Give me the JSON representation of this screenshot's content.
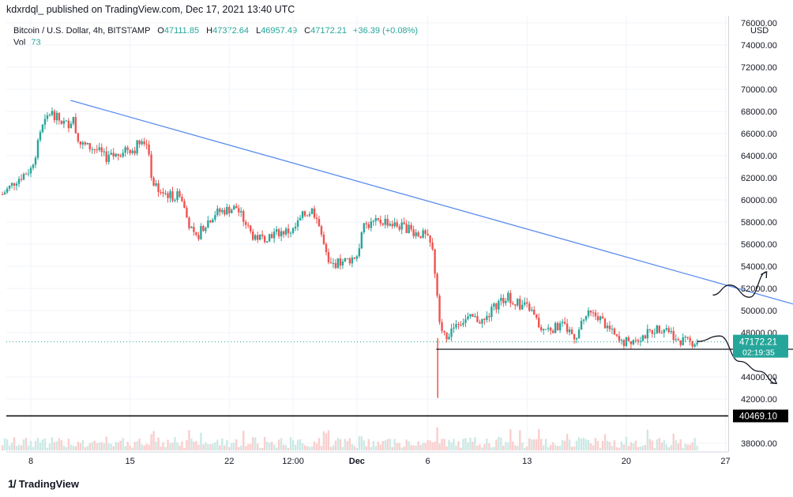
{
  "header": {
    "publish_line": "kdxrdql_ published on TradingView.com, Dec 17, 2021 13:40 UTC"
  },
  "legend": {
    "symbol": "Bitcoin / U.S. Dollar, 4h, BITSTAMP",
    "open_label": "O",
    "open": "47111.85",
    "high_label": "H",
    "high": "47372.64",
    "low_label": "L",
    "low": "46957.49",
    "close_label": "C",
    "close": "47172.21",
    "change": "+36.39 (+0.08%)",
    "vol_label": "Vol",
    "vol": "73"
  },
  "colors": {
    "up": "#26a69a",
    "down": "#ef5350",
    "trendline": "#5b8def",
    "hline": "#131722",
    "price_tag": "#26a69a",
    "support_tag": "#000000",
    "vol_up": "#cce9e5",
    "vol_down": "#f9cfce"
  },
  "footer": {
    "brand": "TradingView",
    "brand_icon": "tv-logo-icon"
  },
  "chart_data": {
    "type": "candlestick",
    "symbol": "BTCUSD",
    "interval": "4h",
    "currency_label": "USD",
    "y_ticks": [
      "76000.00",
      "74000.00",
      "72000.00",
      "70000.00",
      "68000.00",
      "66000.00",
      "64000.00",
      "62000.00",
      "60000.00",
      "58000.00",
      "56000.00",
      "54000.00",
      "52000.00",
      "50000.00",
      "48000.00",
      "44000.00",
      "42000.00",
      "38000.00"
    ],
    "y_tick_values": [
      76000,
      74000,
      72000,
      70000,
      68000,
      66000,
      64000,
      62000,
      60000,
      58000,
      56000,
      54000,
      52000,
      50000,
      48000,
      44000,
      42000,
      38000
    ],
    "ylim": [
      37000,
      77000
    ],
    "x_ticks": [
      "8",
      "15",
      "22",
      "12:00",
      "Dec",
      "6",
      "13",
      "20",
      "27"
    ],
    "x_tick_days": [
      8,
      15,
      22,
      26.5,
      31,
      36,
      43,
      50,
      57
    ],
    "xlim": [
      6,
      59
    ],
    "x_unit": "days from Nov 1, 2021 (Dec 1 = 31)",
    "ohlc_anchor_points": [
      {
        "d": 6.0,
        "price": 60500
      },
      {
        "d": 7.0,
        "price": 61800
      },
      {
        "d": 8.0,
        "price": 62800
      },
      {
        "d": 8.4,
        "price": 64500
      },
      {
        "d": 8.8,
        "price": 66500
      },
      {
        "d": 9.4,
        "price": 68000
      },
      {
        "d": 10.0,
        "price": 67200
      },
      {
        "d": 10.6,
        "price": 66800
      },
      {
        "d": 11.0,
        "price": 67500
      },
      {
        "d": 11.3,
        "price": 65200
      },
      {
        "d": 12.0,
        "price": 64800
      },
      {
        "d": 12.6,
        "price": 64600
      },
      {
        "d": 13.3,
        "price": 63800
      },
      {
        "d": 14.0,
        "price": 64000
      },
      {
        "d": 14.7,
        "price": 64700
      },
      {
        "d": 15.3,
        "price": 64500
      },
      {
        "d": 15.8,
        "price": 65800
      },
      {
        "d": 16.2,
        "price": 64800
      },
      {
        "d": 16.6,
        "price": 61500
      },
      {
        "d": 17.3,
        "price": 60700
      },
      {
        "d": 18.0,
        "price": 60300
      },
      {
        "d": 18.5,
        "price": 60600
      },
      {
        "d": 19.0,
        "price": 58400
      },
      {
        "d": 19.6,
        "price": 56300
      },
      {
        "d": 20.2,
        "price": 57700
      },
      {
        "d": 21.0,
        "price": 58800
      },
      {
        "d": 21.8,
        "price": 59100
      },
      {
        "d": 22.5,
        "price": 59300
      },
      {
        "d": 23.0,
        "price": 58200
      },
      {
        "d": 23.6,
        "price": 56800
      },
      {
        "d": 24.3,
        "price": 56500
      },
      {
        "d": 25.0,
        "price": 56900
      },
      {
        "d": 25.7,
        "price": 57100
      },
      {
        "d": 26.5,
        "price": 57200
      },
      {
        "d": 27.2,
        "price": 58600
      },
      {
        "d": 27.9,
        "price": 59100
      },
      {
        "d": 28.4,
        "price": 57400
      },
      {
        "d": 29.0,
        "price": 54000
      },
      {
        "d": 29.8,
        "price": 54400
      },
      {
        "d": 30.5,
        "price": 54600
      },
      {
        "d": 31.0,
        "price": 55000
      },
      {
        "d": 31.5,
        "price": 57600
      },
      {
        "d": 32.2,
        "price": 57900
      },
      {
        "d": 33.0,
        "price": 58100
      },
      {
        "d": 33.7,
        "price": 57700
      },
      {
        "d": 34.4,
        "price": 57500
      },
      {
        "d": 35.2,
        "price": 57000
      },
      {
        "d": 35.8,
        "price": 56800
      },
      {
        "d": 36.3,
        "price": 55700
      },
      {
        "d": 36.6,
        "price": 52500
      },
      {
        "d": 36.9,
        "price": 48500
      },
      {
        "d": 37.3,
        "price": 47200
      },
      {
        "d": 37.8,
        "price": 48800
      },
      {
        "d": 38.5,
        "price": 49100
      },
      {
        "d": 39.2,
        "price": 49300
      },
      {
        "d": 40.0,
        "price": 49000
      },
      {
        "d": 40.8,
        "price": 50500
      },
      {
        "d": 41.6,
        "price": 51300
      },
      {
        "d": 42.4,
        "price": 50600
      },
      {
        "d": 43.2,
        "price": 50200
      },
      {
        "d": 44.0,
        "price": 48300
      },
      {
        "d": 44.8,
        "price": 48400
      },
      {
        "d": 45.6,
        "price": 48600
      },
      {
        "d": 46.4,
        "price": 47600
      },
      {
        "d": 47.2,
        "price": 49600
      },
      {
        "d": 48.0,
        "price": 49500
      },
      {
        "d": 48.8,
        "price": 48300
      },
      {
        "d": 49.6,
        "price": 47000
      },
      {
        "d": 50.4,
        "price": 47400
      },
      {
        "d": 51.2,
        "price": 47700
      },
      {
        "d": 52.0,
        "price": 48300
      },
      {
        "d": 52.8,
        "price": 48500
      },
      {
        "d": 53.6,
        "price": 47400
      },
      {
        "d": 54.4,
        "price": 47100
      },
      {
        "d": 55.0,
        "price": 47170
      }
    ],
    "trendline": {
      "from": {
        "d": 10.8,
        "price": 69000
      },
      "to": {
        "d": 64.5,
        "price": 49600
      }
    },
    "support_line": {
      "from": {
        "d": 36.6,
        "price": 46500
      },
      "to": {
        "d": 64.8,
        "price": 46500
      }
    },
    "support_level": {
      "price": 40469.1,
      "label": "40469.10"
    },
    "spike_low": {
      "d": 36.7,
      "price": 42100
    },
    "last_price": {
      "price": 47172.21,
      "label": "47172.21",
      "countdown": "02:19:35"
    },
    "projections": [
      {
        "name": "bullish",
        "path": [
          {
            "d": 56.1,
            "price": 51400
          },
          {
            "d": 57.3,
            "price": 52300
          },
          {
            "d": 58.7,
            "price": 51200
          },
          {
            "d": 59.9,
            "price": 53500
          }
        ]
      },
      {
        "name": "bearish",
        "path": [
          {
            "d": 55.0,
            "price": 47200
          },
          {
            "d": 56.6,
            "price": 47700
          },
          {
            "d": 58.0,
            "price": 45400
          },
          {
            "d": 59.4,
            "price": 44500
          },
          {
            "d": 60.6,
            "price": 43400
          }
        ]
      }
    ]
  }
}
